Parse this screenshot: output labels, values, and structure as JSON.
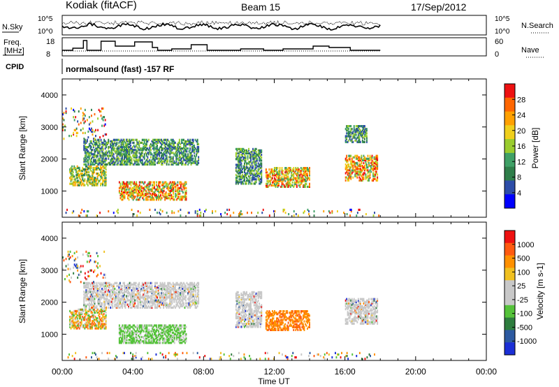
{
  "header": {
    "station": "Kodiak (fitACF)",
    "beam": "Beam 15",
    "date": "17/Sep/2012"
  },
  "status_panels": {
    "nsky_label": "N.Sky",
    "nsearch_label": "N.Search",
    "nsky_ticks": [
      "10^5",
      "10^0"
    ],
    "nsearch_ticks": [
      "10^5",
      "10^0"
    ],
    "freq_label_1": "Freq.",
    "freq_label_2": "[MHz]",
    "freq_ticks": [
      "18",
      "8"
    ],
    "nave_label": "Nave",
    "nave_ticks": [
      "60",
      "0"
    ],
    "cpid_label": "CPID",
    "cpid_text": "normalsound (fast) -157 RF"
  },
  "colors": {
    "power_scale": [
      "#0000ff",
      "#2d4da8",
      "#2f7e4a",
      "#3fa066",
      "#9acc2e",
      "#f0cf1c",
      "#ffa000",
      "#ff6600",
      "#ee1111"
    ],
    "velocity_scale": [
      "#1b2fd6",
      "#2d5aa0",
      "#2e7d3e",
      "#55c23a",
      "#c8c8c8",
      "#c8c8c8",
      "#f0c020",
      "#ff9000",
      "#ff5a10",
      "#ee1111"
    ]
  },
  "chart_data": [
    {
      "type": "heatmap",
      "name": "power",
      "xlabel": "",
      "ylabel": "Slant Range [km]",
      "x_ticks": [
        "00:00",
        "04:00",
        "08:00",
        "12:00",
        "16:00",
        "20:00",
        "00:00"
      ],
      "y_ticks": [
        1000,
        2000,
        3000,
        4000
      ],
      "xlim_hours": [
        0,
        24
      ],
      "ylim_km": [
        180,
        4500
      ],
      "data_end_hour": 18,
      "colorbar": {
        "label": "Power [dB]",
        "ticks": [
          28,
          24,
          20,
          16,
          12,
          8,
          4
        ],
        "range": [
          0,
          30
        ]
      },
      "scatter_regions": [
        {
          "t": [
            0.4,
            2.5
          ],
          "r": [
            1150,
            1750
          ],
          "level": "mid"
        },
        {
          "t": [
            1.2,
            3.8
          ],
          "r": [
            1800,
            2600
          ],
          "level": "low"
        },
        {
          "t": [
            3.3,
            7.7
          ],
          "r": [
            1800,
            2600
          ],
          "level": "low"
        },
        {
          "t": [
            3.2,
            7.0
          ],
          "r": [
            700,
            1250
          ],
          "level": "high"
        },
        {
          "t": [
            9.8,
            11.3
          ],
          "r": [
            1200,
            2300
          ],
          "level": "low"
        },
        {
          "t": [
            11.5,
            14.0
          ],
          "r": [
            1100,
            1700
          ],
          "level": "high"
        },
        {
          "t": [
            16.0,
            17.8
          ],
          "r": [
            1300,
            2100
          ],
          "level": "high"
        },
        {
          "t": [
            16.0,
            17.2
          ],
          "r": [
            2500,
            3000
          ],
          "level": "low"
        },
        {
          "t": [
            0.0,
            2.5
          ],
          "r": [
            2600,
            3550
          ],
          "level": "sparse"
        },
        {
          "t": [
            0.0,
            18.0
          ],
          "r": [
            200,
            400
          ],
          "level": "sparse"
        }
      ]
    },
    {
      "type": "heatmap",
      "name": "velocity",
      "xlabel": "Time UT",
      "ylabel": "Slant Range [km]",
      "x_ticks": [
        "00:00",
        "04:00",
        "08:00",
        "12:00",
        "16:00",
        "20:00",
        "00:00"
      ],
      "y_ticks": [
        1000,
        2000,
        3000,
        4000
      ],
      "xlim_hours": [
        0,
        24
      ],
      "ylim_km": [
        180,
        4500
      ],
      "data_end_hour": 18,
      "colorbar": {
        "label": "Velocity [m s-1]",
        "ticks": [
          1000,
          500,
          100,
          25,
          -25,
          -100,
          -500,
          -1000
        ]
      },
      "scatter_regions": [
        {
          "t": [
            0.4,
            2.5
          ],
          "r": [
            1150,
            1750
          ],
          "level": "mix"
        },
        {
          "t": [
            1.2,
            7.7
          ],
          "r": [
            1800,
            2600
          ],
          "level": "gray"
        },
        {
          "t": [
            3.2,
            7.0
          ],
          "r": [
            700,
            1250
          ],
          "level": "green"
        },
        {
          "t": [
            9.8,
            11.3
          ],
          "r": [
            1200,
            2300
          ],
          "level": "gray"
        },
        {
          "t": [
            11.5,
            14.0
          ],
          "r": [
            1100,
            1700
          ],
          "level": "orange"
        },
        {
          "t": [
            16.0,
            17.8
          ],
          "r": [
            1300,
            2100
          ],
          "level": "gray"
        },
        {
          "t": [
            0.0,
            2.5
          ],
          "r": [
            2600,
            3550
          ],
          "level": "sparse"
        },
        {
          "t": [
            0.0,
            18.0
          ],
          "r": [
            200,
            400
          ],
          "level": "sparse"
        }
      ]
    }
  ]
}
